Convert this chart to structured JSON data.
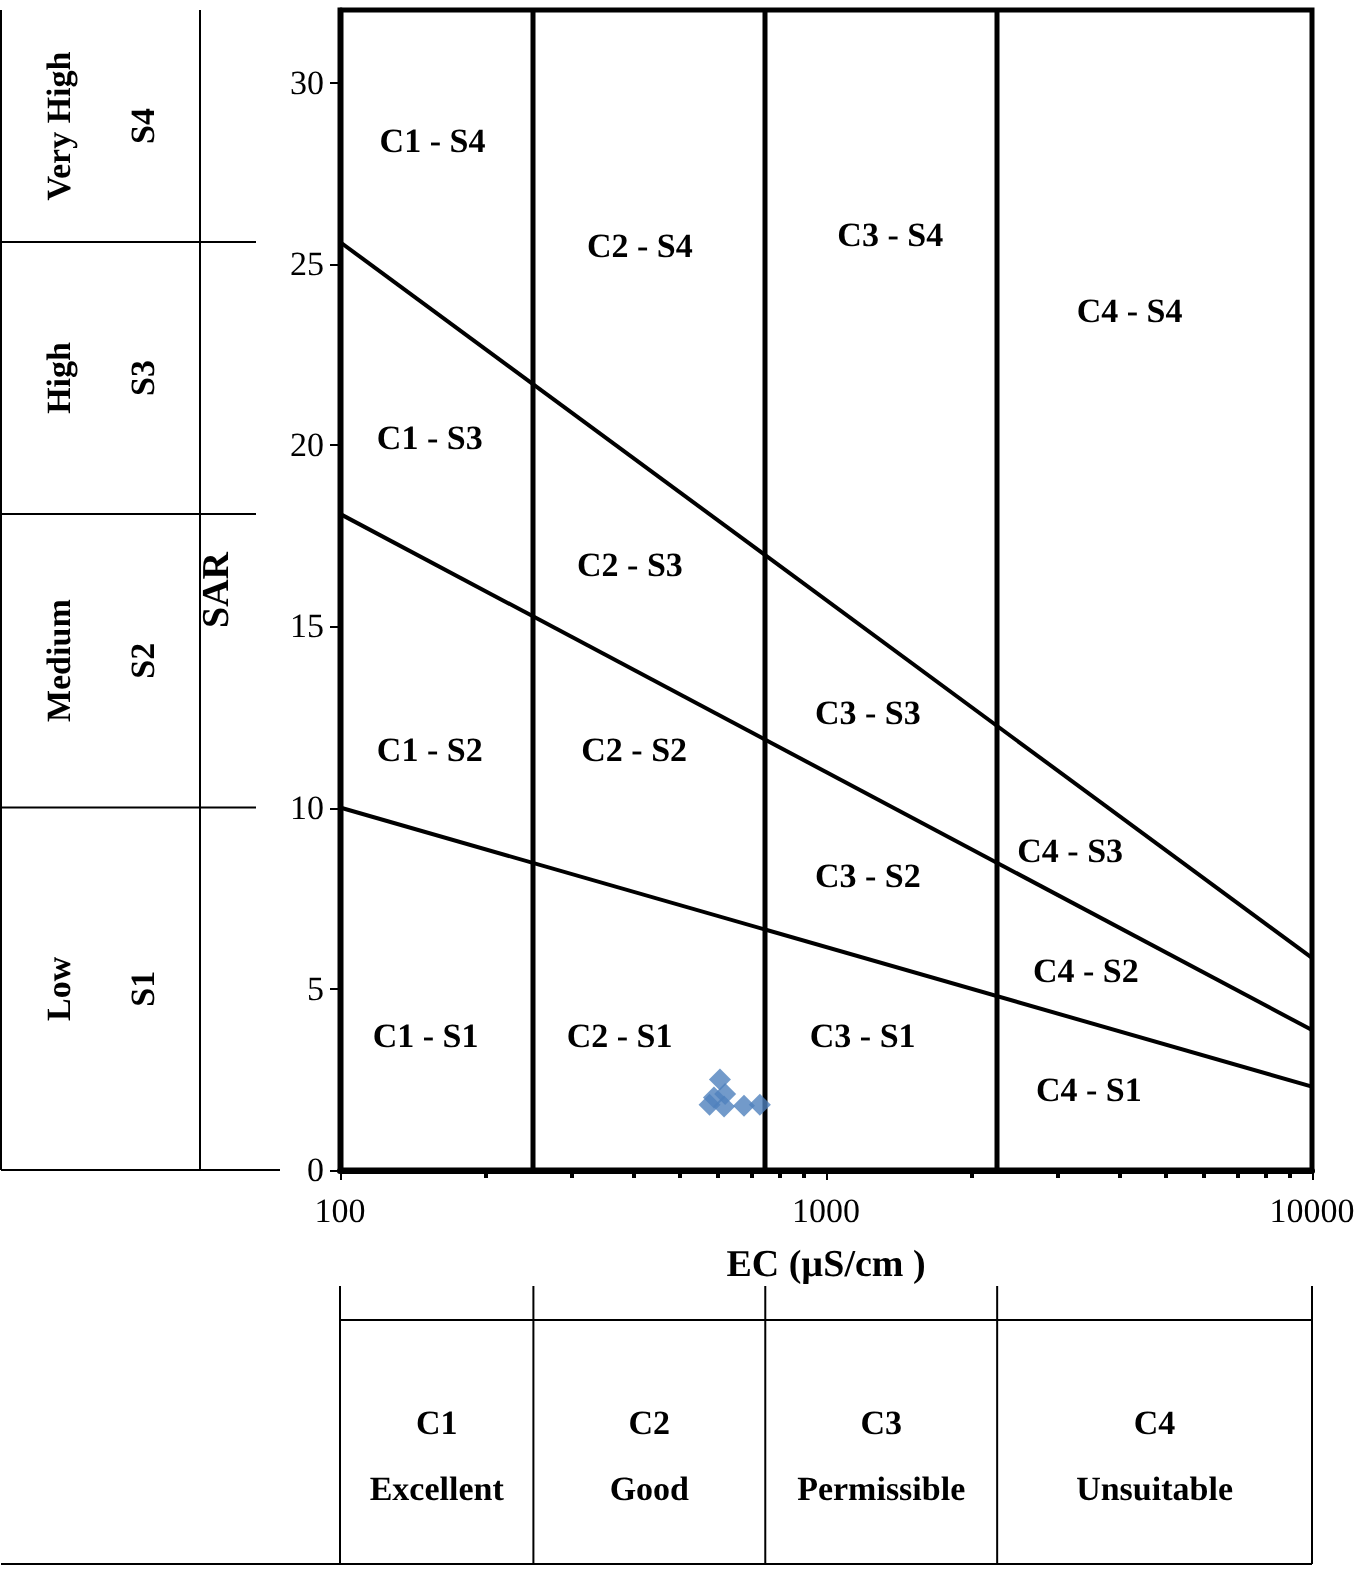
{
  "chart_data": {
    "type": "scatter",
    "xlabel": "EC (µS/cm )",
    "ylabel": "SAR",
    "log": "x",
    "xlim": [
      100,
      10000
    ],
    "xticks": [
      100,
      1000,
      10000
    ],
    "ylim": [
      0,
      32
    ],
    "yticks": [
      0,
      5,
      10,
      15,
      20,
      25,
      30
    ],
    "grid": false,
    "series": [
      {
        "color": "#4f81bd",
        "marker": "diamond",
        "x": [
          605,
          576,
          617,
          620,
          678,
          731,
          588
        ],
        "values": [
          2.5,
          1.8,
          1.75,
          2.1,
          1.77,
          1.8,
          2.0
        ]
      },
      {
        "type": "line",
        "color": "#000000",
        "marker": "none",
        "line_style": "solid",
        "x": [
          100,
          10000
        ],
        "values": [
          25.6,
          5.85
        ]
      },
      {
        "type": "line",
        "color": "#000000",
        "marker": "none",
        "line_style": "solid",
        "x": [
          100,
          10000
        ],
        "values": [
          18.1,
          3.86
        ]
      },
      {
        "type": "line",
        "color": "#000000",
        "marker": "none",
        "line_style": "solid",
        "x": [
          100,
          10000
        ],
        "values": [
          10,
          2.3
        ]
      }
    ],
    "ref_lines": [
      {
        "axis": "x",
        "value": 250,
        "color": "#000000"
      },
      {
        "axis": "x",
        "value": 750,
        "color": "#000000"
      },
      {
        "axis": "x",
        "value": 2250,
        "color": "#000000"
      }
    ],
    "annotations": [
      "C1 - S4",
      "C2 - S4",
      "C3 - S4",
      "C4 - S4",
      "C1 - S3",
      "C2 - S3",
      "C3 - S3",
      "C4 - S3",
      "C1 - S2",
      "C2 - S2",
      "C3 - S2",
      "C4 - S2",
      "C1 - S1",
      "C2 - S1",
      "C3 - S1",
      "C4 - S1",
      "Very High\nS4",
      "High\nS3",
      "Medium\nS2",
      "Low\nS1",
      "C1\nExcellent",
      "C2\nGood",
      "C3\nPermissible",
      "C4\nUnsuitable"
    ]
  }
}
